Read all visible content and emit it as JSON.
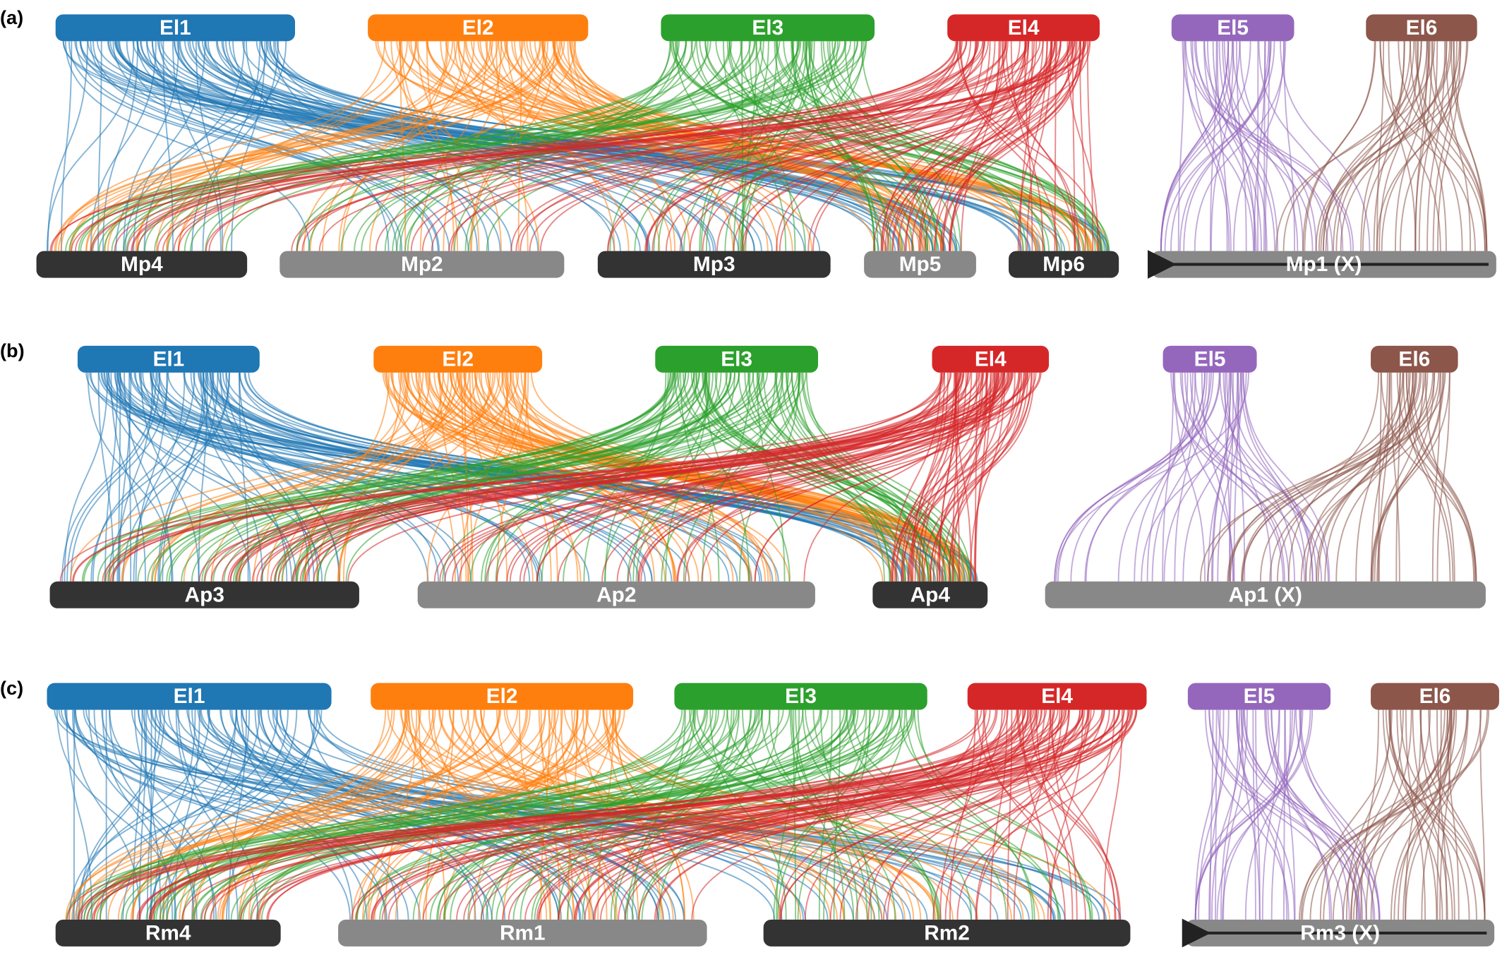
{
  "panels": [
    {
      "label": "(a)",
      "top": [
        {
          "label": "El1",
          "color": "#1f77b4"
        },
        {
          "label": "El2",
          "color": "#ff7f0e"
        },
        {
          "label": "El3",
          "color": "#2ca02c"
        },
        {
          "label": "El4",
          "color": "#d62728"
        },
        {
          "label": "El5",
          "color": "#9467bd"
        },
        {
          "label": "El6",
          "color": "#8c564b"
        }
      ],
      "bottom": [
        {
          "label": "Mp4",
          "color": "#333333"
        },
        {
          "label": "Mp2",
          "color": "#888888"
        },
        {
          "label": "Mp3",
          "color": "#333333"
        },
        {
          "label": "Mp5",
          "color": "#888888"
        },
        {
          "label": "Mp6",
          "color": "#333333"
        },
        {
          "label": "Mp1 (X)",
          "color": "#888888"
        }
      ]
    },
    {
      "label": "(b)",
      "top": [
        {
          "label": "El1",
          "color": "#1f77b4"
        },
        {
          "label": "El2",
          "color": "#ff7f0e"
        },
        {
          "label": "El3",
          "color": "#2ca02c"
        },
        {
          "label": "El4",
          "color": "#d62728"
        },
        {
          "label": "El5",
          "color": "#9467bd"
        },
        {
          "label": "El6",
          "color": "#8c564b"
        }
      ],
      "bottom": [
        {
          "label": "Ap3",
          "color": "#333333"
        },
        {
          "label": "Ap2",
          "color": "#888888"
        },
        {
          "label": "Ap4",
          "color": "#333333"
        },
        {
          "label": "Ap1 (X)",
          "color": "#888888"
        }
      ]
    },
    {
      "label": "(c)",
      "top": [
        {
          "label": "El1",
          "color": "#1f77b4"
        },
        {
          "label": "El2",
          "color": "#ff7f0e"
        },
        {
          "label": "El3",
          "color": "#2ca02c"
        },
        {
          "label": "El4",
          "color": "#d62728"
        },
        {
          "label": "El5",
          "color": "#9467bd"
        },
        {
          "label": "El6",
          "color": "#8c564b"
        }
      ],
      "bottom": [
        {
          "label": "Rm4",
          "color": "#333333"
        },
        {
          "label": "Rm1",
          "color": "#888888"
        },
        {
          "label": "Rm2",
          "color": "#333333"
        },
        {
          "label": "Rm3 (X)",
          "color": "#888888"
        }
      ]
    }
  ]
}
